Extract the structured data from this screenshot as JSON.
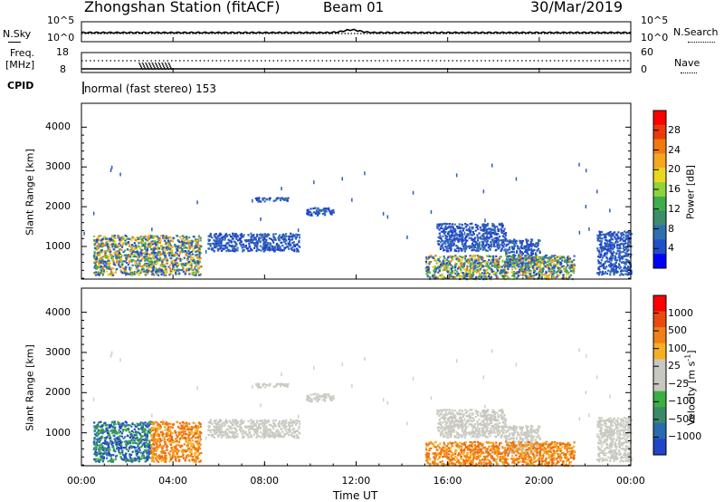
{
  "header": {
    "station": "Zhongshan Station (fitACF)",
    "beam": "Beam 01",
    "date": "30/Mar/2019"
  },
  "top_panels": {
    "nsky_label": "N.Sky",
    "nsky_ticks": [
      "10^5",
      "10^0"
    ],
    "nsearch_label": "N.Search",
    "nsearch_ticks": [
      "10^5",
      "10^0"
    ],
    "freq_label": "Freq.",
    "freq_unit": "[MHz]",
    "freq_ticks": [
      "18",
      "8"
    ],
    "nave_label": "Nave",
    "nave_ticks": [
      "60",
      "0"
    ],
    "cpid_label": "CPID",
    "cpid_text": "normal (fast stereo) 153"
  },
  "chart_data": [
    {
      "type": "heatmap",
      "name": "power",
      "ylabel": "Slant Range [km]",
      "xlabel": "",
      "ylim": [
        180,
        4600
      ],
      "yticks": [
        "4000",
        "3000",
        "2000",
        "1000"
      ],
      "ytick_values": [
        4000,
        3000,
        2000,
        1000
      ],
      "colorbar": {
        "label": "Power [dB]",
        "tick_labels": [
          "28",
          "24",
          "20",
          "16",
          "12",
          "8",
          "4"
        ],
        "colors": [
          "#0000ff",
          "#1f4fc8",
          "#2e6fb0",
          "#3d8c6a",
          "#3fae4a",
          "#8fd33a",
          "#e8d81f",
          "#f5a623",
          "#f07a10",
          "#ea3a0c",
          "#ff0000"
        ]
      },
      "patches": [
        {
          "x0": 0.5,
          "x1": 5.2,
          "y0": 300,
          "y1": 1300,
          "level": "mixed-high"
        },
        {
          "x0": 5.5,
          "x1": 9.5,
          "y0": 900,
          "y1": 1350,
          "level": "low"
        },
        {
          "x0": 9.8,
          "x1": 11.0,
          "y0": 1800,
          "y1": 2000,
          "level": "low"
        },
        {
          "x0": 7.5,
          "x1": 9.0,
          "y0": 2150,
          "y1": 2250,
          "level": "low"
        },
        {
          "x0": 15.5,
          "x1": 18.5,
          "y0": 900,
          "y1": 1600,
          "level": "low"
        },
        {
          "x0": 18.5,
          "x1": 20.0,
          "y0": 500,
          "y1": 1200,
          "level": "low"
        },
        {
          "x0": 15.0,
          "x1": 21.5,
          "y0": 200,
          "y1": 800,
          "level": "mixed-high"
        },
        {
          "x0": 22.5,
          "x1": 24.0,
          "y0": 300,
          "y1": 1400,
          "level": "low"
        }
      ]
    },
    {
      "type": "heatmap",
      "name": "velocity",
      "ylabel": "Slant Range [km]",
      "xlabel": "Time UT",
      "ylim": [
        180,
        4600
      ],
      "yticks": [
        "4000",
        "3000",
        "2000",
        "1000"
      ],
      "ytick_values": [
        4000,
        3000,
        2000,
        1000
      ],
      "xticks": [
        "00:00",
        "04:00",
        "08:00",
        "12:00",
        "16:00",
        "20:00",
        "00:00"
      ],
      "xtick_values": [
        0,
        4,
        8,
        12,
        16,
        20,
        24
      ],
      "colorbar": {
        "label": "Velocity [m s",
        "label_sup": "-1",
        "label_end": "]",
        "tick_labels": [
          "1000",
          "500",
          "100",
          "25",
          "−25",
          "−100",
          "−500",
          "−1000"
        ],
        "colors": [
          "#2244c8",
          "#2a6ab0",
          "#3a8a6a",
          "#3ab043",
          "#c8c8c0",
          "#c8c8c0",
          "#f5b020",
          "#f08018",
          "#ea4a10",
          "#ff0000"
        ]
      }
    }
  ]
}
